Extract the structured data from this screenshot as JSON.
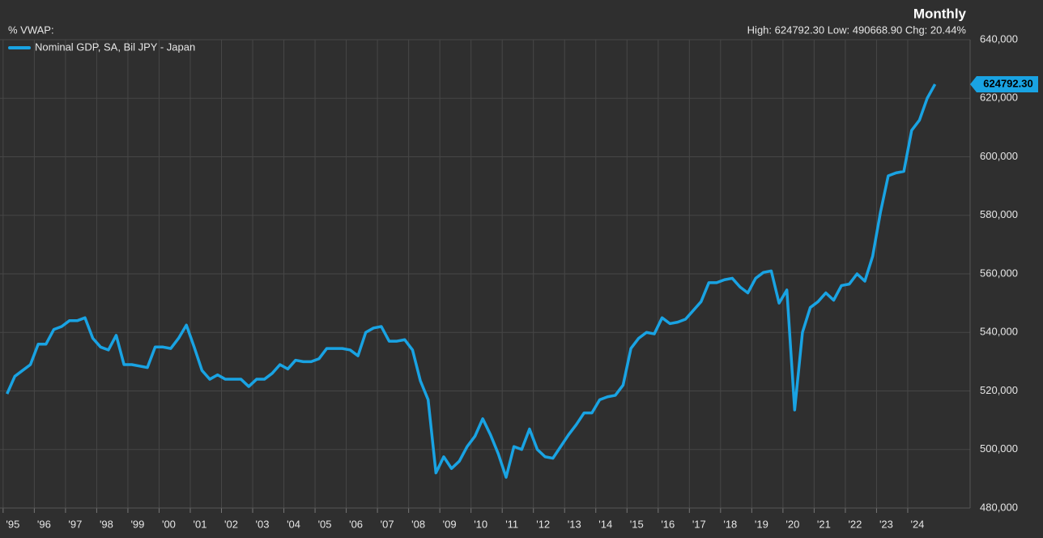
{
  "chart_data": {
    "type": "line",
    "title": "Monthly",
    "subtitle": "%  VWAP:",
    "stats_text": "High: 624792.30 Low: 490668.90 Chg: 20.44%",
    "x": [
      1995.125,
      1995.375,
      1995.625,
      1995.875,
      1996.125,
      1996.375,
      1996.625,
      1996.875,
      1997.125,
      1997.375,
      1997.625,
      1997.875,
      1998.125,
      1998.375,
      1998.625,
      1998.875,
      1999.125,
      1999.375,
      1999.625,
      1999.875,
      2000.125,
      2000.375,
      2000.625,
      2000.875,
      2001.125,
      2001.375,
      2001.625,
      2001.875,
      2002.125,
      2002.375,
      2002.625,
      2002.875,
      2003.125,
      2003.375,
      2003.625,
      2003.875,
      2004.125,
      2004.375,
      2004.625,
      2004.875,
      2005.125,
      2005.375,
      2005.625,
      2005.875,
      2006.125,
      2006.375,
      2006.625,
      2006.875,
      2007.125,
      2007.375,
      2007.625,
      2007.875,
      2008.125,
      2008.375,
      2008.625,
      2008.875,
      2009.125,
      2009.375,
      2009.625,
      2009.875,
      2010.125,
      2010.375,
      2010.625,
      2010.875,
      2011.125,
      2011.375,
      2011.625,
      2011.875,
      2012.125,
      2012.375,
      2012.625,
      2012.875,
      2013.125,
      2013.375,
      2013.625,
      2013.875,
      2014.125,
      2014.375,
      2014.625,
      2014.875,
      2015.125,
      2015.375,
      2015.625,
      2015.875,
      2016.125,
      2016.375,
      2016.625,
      2016.875,
      2017.125,
      2017.375,
      2017.625,
      2017.875,
      2018.125,
      2018.375,
      2018.625,
      2018.875,
      2019.125,
      2019.375,
      2019.625,
      2019.875,
      2020.125,
      2020.375,
      2020.625,
      2020.875,
      2021.125,
      2021.375,
      2021.625,
      2021.875,
      2022.125,
      2022.375,
      2022.625,
      2022.875,
      2023.125,
      2023.375,
      2023.625,
      2023.875,
      2024.125,
      2024.375,
      2024.625,
      2024.875
    ],
    "series": [
      {
        "name": "Nominal GDP, SA, Bil JPY - Japan",
        "color": "#19a3e3",
        "values": [
          519000,
          525000,
          527000,
          529000,
          536000,
          536000,
          541000,
          542000,
          544000,
          544000,
          545000,
          538000,
          535000,
          534000,
          539000,
          529000,
          529000,
          528500,
          528000,
          535000,
          535000,
          534500,
          538000,
          542500,
          535000,
          527000,
          524000,
          525500,
          524000,
          524000,
          524000,
          521500,
          524000,
          524000,
          526000,
          529000,
          527500,
          530500,
          530000,
          530000,
          531000,
          534500,
          534500,
          534500,
          534000,
          532000,
          540000,
          541500,
          542000,
          537000,
          537000,
          537500,
          534000,
          523500,
          517000,
          492000,
          497500,
          493500,
          496000,
          501000,
          504500,
          510500,
          505000,
          498500,
          490500,
          501000,
          500000,
          507000,
          500000,
          497500,
          497000,
          501000,
          505000,
          508500,
          512500,
          512500,
          517000,
          518000,
          518500,
          522000,
          534500,
          538000,
          540000,
          539500,
          545000,
          543000,
          543500,
          544500,
          547500,
          550500,
          557000,
          557000,
          558000,
          558500,
          555500,
          553500,
          558500,
          560500,
          561000,
          550000,
          554500,
          513500,
          540000,
          548500,
          550500,
          553500,
          551000,
          556000,
          556500,
          560000,
          557500,
          566000,
          581000,
          593500,
          594500,
          595000,
          609000,
          612500,
          620000,
          624792.3
        ],
        "value_labels": [
          null,
          null,
          null,
          null,
          null,
          null,
          null,
          null,
          null,
          null,
          null,
          null,
          null,
          null,
          null,
          null,
          null,
          null,
          null,
          null,
          null,
          null,
          null,
          null,
          null,
          null,
          null,
          null,
          null,
          null,
          null,
          null,
          null,
          null,
          null,
          null,
          null,
          null,
          null,
          null,
          null,
          null,
          null,
          null,
          null,
          null,
          null,
          null,
          null,
          null,
          null,
          null,
          null,
          null,
          null,
          null,
          null,
          null,
          null,
          null,
          null,
          null,
          null,
          null,
          null,
          null,
          null,
          null,
          null,
          null,
          null,
          null,
          null,
          null,
          null,
          null,
          null,
          null,
          null,
          null,
          null,
          null,
          null,
          null,
          null,
          null,
          null,
          null,
          null,
          null,
          null,
          null,
          null,
          null,
          null,
          null,
          null,
          null,
          null,
          null,
          null,
          null,
          null,
          null,
          null,
          null,
          null,
          null,
          null,
          null,
          null,
          null,
          null,
          null,
          null,
          null,
          null,
          null,
          null,
          "624792.30"
        ]
      }
    ],
    "xlim": [
      1994.9,
      2026
    ],
    "xticks": [
      {
        "value": 1995,
        "label": "'95"
      },
      {
        "value": 1996,
        "label": "'96"
      },
      {
        "value": 1997,
        "label": "'97"
      },
      {
        "value": 1998,
        "label": "'98"
      },
      {
        "value": 1999,
        "label": "'99"
      },
      {
        "value": 2000,
        "label": "'00"
      },
      {
        "value": 2001,
        "label": "'01"
      },
      {
        "value": 2002,
        "label": "'02"
      },
      {
        "value": 2003,
        "label": "'03"
      },
      {
        "value": 2004,
        "label": "'04"
      },
      {
        "value": 2005,
        "label": "'05"
      },
      {
        "value": 2006,
        "label": "'06"
      },
      {
        "value": 2007,
        "label": "'07"
      },
      {
        "value": 2008,
        "label": "'08"
      },
      {
        "value": 2009,
        "label": "'09"
      },
      {
        "value": 2010,
        "label": "'10"
      },
      {
        "value": 2011,
        "label": "'11"
      },
      {
        "value": 2012,
        "label": "'12"
      },
      {
        "value": 2013,
        "label": "'13"
      },
      {
        "value": 2014,
        "label": "'14"
      },
      {
        "value": 2015,
        "label": "'15"
      },
      {
        "value": 2016,
        "label": "'16"
      },
      {
        "value": 2017,
        "label": "'17"
      },
      {
        "value": 2018,
        "label": "'18"
      },
      {
        "value": 2019,
        "label": "'19"
      },
      {
        "value": 2020,
        "label": "'20"
      },
      {
        "value": 2021,
        "label": "'21"
      },
      {
        "value": 2022,
        "label": "'22"
      },
      {
        "value": 2023,
        "label": "'23"
      },
      {
        "value": 2024,
        "label": "'24"
      }
    ],
    "ylim": [
      480000,
      640000
    ],
    "yticks": [
      {
        "value": 480000,
        "label": "480,000"
      },
      {
        "value": 500000,
        "label": "500,000"
      },
      {
        "value": 520000,
        "label": "520,000"
      },
      {
        "value": 540000,
        "label": "540,000"
      },
      {
        "value": 560000,
        "label": "560,000"
      },
      {
        "value": 580000,
        "label": "580,000"
      },
      {
        "value": 600000,
        "label": "600,000"
      },
      {
        "value": 620000,
        "label": "620,000"
      },
      {
        "value": 640000,
        "label": "640,000"
      }
    ],
    "grid": true,
    "legend": "top-left"
  }
}
